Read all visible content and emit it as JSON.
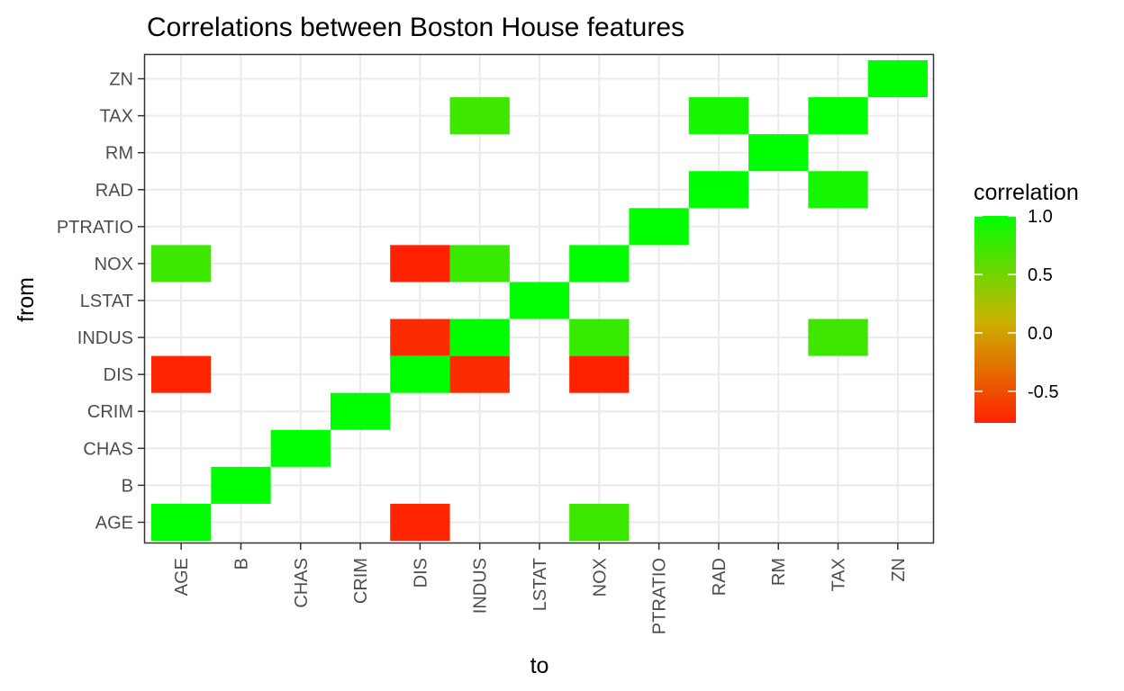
{
  "chart_data": {
    "type": "heatmap",
    "title": "Correlations between Boston House features",
    "xlabel": "to",
    "ylabel": "from",
    "x_categories": [
      "AGE",
      "B",
      "CHAS",
      "CRIM",
      "DIS",
      "INDUS",
      "LSTAT",
      "NOX",
      "PTRATIO",
      "RAD",
      "RM",
      "TAX",
      "ZN"
    ],
    "y_categories": [
      "AGE",
      "B",
      "CHAS",
      "CRIM",
      "DIS",
      "INDUS",
      "LSTAT",
      "NOX",
      "PTRATIO",
      "RAD",
      "RM",
      "TAX",
      "ZN"
    ],
    "cells": [
      {
        "from": "ZN",
        "to": "ZN",
        "value": 1.0
      },
      {
        "from": "TAX",
        "to": "INDUS",
        "value": 0.72
      },
      {
        "from": "TAX",
        "to": "RAD",
        "value": 0.91
      },
      {
        "from": "TAX",
        "to": "TAX",
        "value": 1.0
      },
      {
        "from": "RM",
        "to": "RM",
        "value": 1.0
      },
      {
        "from": "RAD",
        "to": "RAD",
        "value": 1.0
      },
      {
        "from": "RAD",
        "to": "TAX",
        "value": 0.91
      },
      {
        "from": "PTRATIO",
        "to": "PTRATIO",
        "value": 1.0
      },
      {
        "from": "NOX",
        "to": "AGE",
        "value": 0.73
      },
      {
        "from": "NOX",
        "to": "DIS",
        "value": -0.77
      },
      {
        "from": "NOX",
        "to": "INDUS",
        "value": 0.76
      },
      {
        "from": "NOX",
        "to": "NOX",
        "value": 1.0
      },
      {
        "from": "LSTAT",
        "to": "LSTAT",
        "value": 1.0
      },
      {
        "from": "INDUS",
        "to": "DIS",
        "value": -0.71
      },
      {
        "from": "INDUS",
        "to": "INDUS",
        "value": 1.0
      },
      {
        "from": "INDUS",
        "to": "NOX",
        "value": 0.76
      },
      {
        "from": "INDUS",
        "to": "TAX",
        "value": 0.72
      },
      {
        "from": "DIS",
        "to": "AGE",
        "value": -0.75
      },
      {
        "from": "DIS",
        "to": "DIS",
        "value": 1.0
      },
      {
        "from": "DIS",
        "to": "INDUS",
        "value": -0.71
      },
      {
        "from": "DIS",
        "to": "NOX",
        "value": -0.77
      },
      {
        "from": "CRIM",
        "to": "CRIM",
        "value": 1.0
      },
      {
        "from": "CHAS",
        "to": "CHAS",
        "value": 1.0
      },
      {
        "from": "B",
        "to": "B",
        "value": 1.0
      },
      {
        "from": "AGE",
        "to": "AGE",
        "value": 1.0
      },
      {
        "from": "AGE",
        "to": "DIS",
        "value": -0.75
      },
      {
        "from": "AGE",
        "to": "NOX",
        "value": 0.73
      }
    ],
    "legend": {
      "title": "correlation",
      "breaks": [
        "1.0",
        "0.5",
        "0.0",
        "-0.5"
      ],
      "break_values": [
        1.0,
        0.5,
        0.0,
        -0.5
      ],
      "range": [
        -0.77,
        1.0
      ],
      "low_color": "#ff2200",
      "mid_color": "#c8b400",
      "high_color": "#00ff00",
      "placement": "right"
    },
    "grid": true
  }
}
